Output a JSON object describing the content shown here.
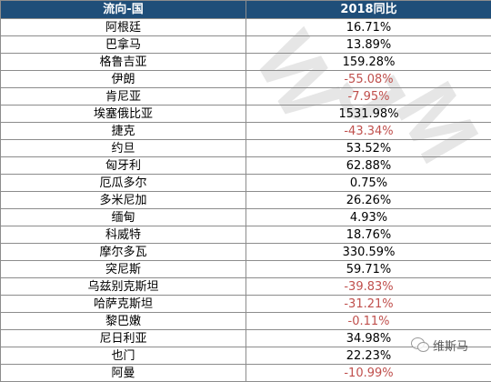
{
  "watermark": {
    "letters": [
      "W",
      "J",
      "M"
    ],
    "source_text": "维斯马"
  },
  "table": {
    "headers": [
      "流向-国",
      "2018同比"
    ],
    "rows": [
      {
        "country": "阿根廷",
        "yoy": "16.71%",
        "negative": false
      },
      {
        "country": "巴拿马",
        "yoy": "13.89%",
        "negative": false
      },
      {
        "country": "格鲁吉亚",
        "yoy": "159.28%",
        "negative": false
      },
      {
        "country": "伊朗",
        "yoy": "-55.08%",
        "negative": true
      },
      {
        "country": "肯尼亚",
        "yoy": "-7.95%",
        "negative": true
      },
      {
        "country": "埃塞俄比亚",
        "yoy": "1531.98%",
        "negative": false
      },
      {
        "country": "捷克",
        "yoy": "-43.34%",
        "negative": true
      },
      {
        "country": "约旦",
        "yoy": "53.52%",
        "negative": false
      },
      {
        "country": "匈牙利",
        "yoy": "62.88%",
        "negative": false
      },
      {
        "country": "厄瓜多尔",
        "yoy": "0.75%",
        "negative": false
      },
      {
        "country": "多米尼加",
        "yoy": "26.26%",
        "negative": false
      },
      {
        "country": "缅甸",
        "yoy": "4.93%",
        "negative": false
      },
      {
        "country": "科威特",
        "yoy": "18.76%",
        "negative": false
      },
      {
        "country": "摩尔多瓦",
        "yoy": "330.59%",
        "negative": false
      },
      {
        "country": "突尼斯",
        "yoy": "59.71%",
        "negative": false
      },
      {
        "country": "乌兹别克斯坦",
        "yoy": "-39.83%",
        "negative": true
      },
      {
        "country": "哈萨克斯坦",
        "yoy": "-31.21%",
        "negative": true
      },
      {
        "country": "黎巴嫩",
        "yoy": "-0.11%",
        "negative": true
      },
      {
        "country": "尼日利亚",
        "yoy": "34.98%",
        "negative": false
      },
      {
        "country": "也门",
        "yoy": "22.23%",
        "negative": false
      },
      {
        "country": "阿曼",
        "yoy": "-10.99%",
        "negative": true
      }
    ]
  }
}
